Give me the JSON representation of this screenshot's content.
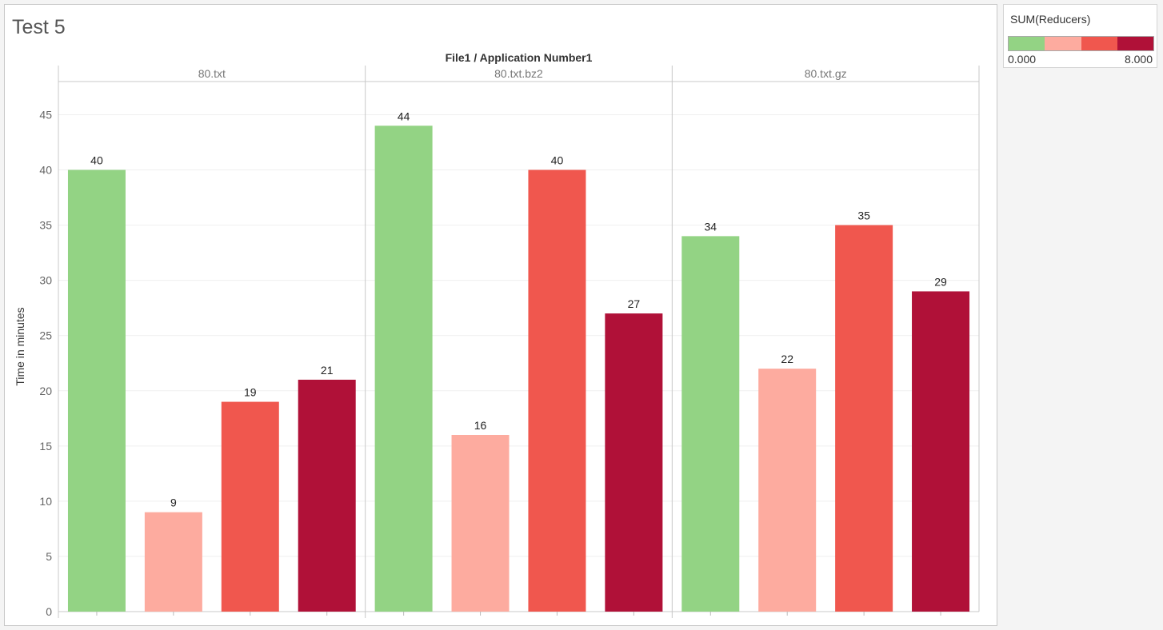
{
  "title": "Test 5",
  "legend": {
    "title": "SUM(Reducers)",
    "min_label": "0.000",
    "max_label": "8.000",
    "colors": [
      "#93d384",
      "#fdab9f",
      "#f0574e",
      "#b01138"
    ]
  },
  "chart_data": {
    "type": "bar",
    "title": "Test 5",
    "column_header": "File1 / Application Number1",
    "ylabel": "Time in minutes",
    "xlabel": "",
    "ylim": [
      0,
      48
    ],
    "yticks": [
      0,
      5,
      10,
      15,
      20,
      25,
      30,
      35,
      40,
      45
    ],
    "grid": true,
    "legend_placement": "top-right",
    "panels": [
      {
        "name": "80.txt",
        "values": [
          40,
          9,
          19,
          21
        ]
      },
      {
        "name": "80.txt.bz2",
        "values": [
          44,
          16,
          40,
          27
        ]
      },
      {
        "name": "80.txt.gz",
        "values": [
          34,
          22,
          35,
          29
        ]
      }
    ],
    "bar_colors": [
      "#93d384",
      "#fdab9f",
      "#f0574e",
      "#b01138"
    ]
  }
}
